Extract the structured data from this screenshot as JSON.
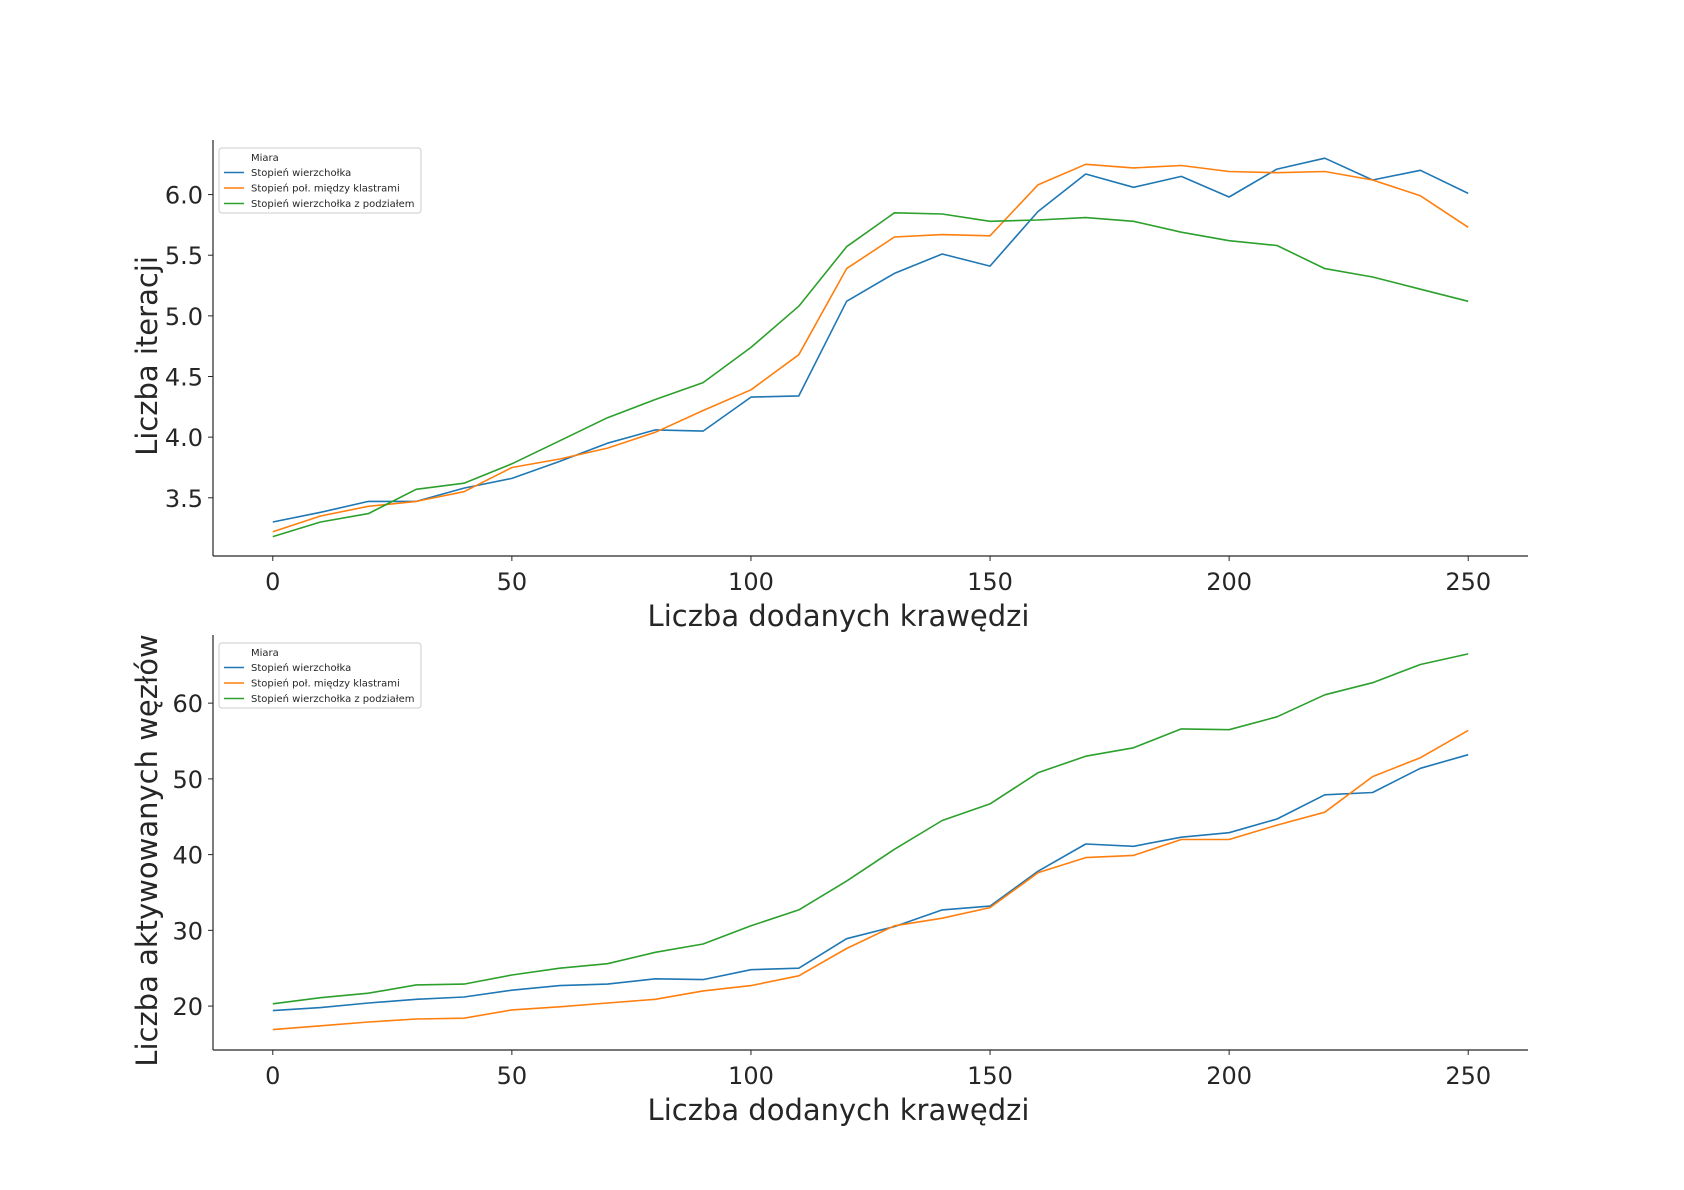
{
  "chart_data": [
    {
      "type": "line",
      "xlabel": "Liczba dodanych krawędzi",
      "ylabel": "Liczba iteracji",
      "xlim": [
        -12.5,
        262.5
      ],
      "ylim": [
        3.02,
        6.45
      ],
      "xticks": [
        0,
        50,
        100,
        150,
        200,
        250
      ],
      "xtick_labels": [
        "0",
        "50",
        "100",
        "150",
        "200",
        "250"
      ],
      "yticks": [
        3.5,
        4.0,
        4.5,
        5.0,
        5.5,
        6.0
      ],
      "ytick_labels": [
        "3.5",
        "4.0",
        "4.5",
        "5.0",
        "5.5",
        "6.0"
      ],
      "grid": false,
      "legend": {
        "title": "Miara",
        "placement": "upper-left",
        "entries": [
          "Stopień wierzchołka",
          "Stopień poł. między klastrami",
          "Stopień wierzchołka z podziałem"
        ]
      },
      "x": [
        0,
        10,
        20,
        30,
        40,
        50,
        60,
        70,
        80,
        90,
        100,
        110,
        120,
        130,
        140,
        150,
        160,
        170,
        180,
        190,
        200,
        210,
        220,
        230,
        240,
        250
      ],
      "series": [
        {
          "name": "Stopień wierzchołka",
          "color": "#1f77b4",
          "values": [
            3.3,
            3.38,
            3.47,
            3.47,
            3.58,
            3.66,
            3.8,
            3.95,
            4.06,
            4.05,
            4.33,
            4.34,
            5.12,
            5.35,
            5.51,
            5.41,
            5.86,
            6.17,
            6.06,
            6.15,
            5.98,
            6.21,
            6.3,
            6.12,
            6.2,
            6.01
          ]
        },
        {
          "name": "Stopień poł. między klastrami",
          "color": "#ff7f0e",
          "values": [
            3.22,
            3.35,
            3.43,
            3.47,
            3.55,
            3.75,
            3.82,
            3.91,
            4.04,
            4.22,
            4.39,
            4.68,
            5.39,
            5.65,
            5.67,
            5.66,
            6.08,
            6.25,
            6.22,
            6.24,
            6.19,
            6.18,
            6.19,
            6.12,
            5.99,
            5.73
          ]
        },
        {
          "name": "Stopień wierzchołka z podziałem",
          "color": "#2ca02c",
          "values": [
            3.18,
            3.3,
            3.37,
            3.57,
            3.62,
            3.78,
            3.97,
            4.16,
            4.31,
            4.45,
            4.74,
            5.08,
            5.57,
            5.85,
            5.84,
            5.78,
            5.79,
            5.81,
            5.78,
            5.69,
            5.62,
            5.58,
            5.39,
            5.32,
            5.22,
            5.12
          ]
        }
      ]
    },
    {
      "type": "line",
      "xlabel": "Liczba dodanych krawędzi",
      "ylabel": "Liczba aktywowanych węzłów",
      "xlim": [
        -12.5,
        262.5
      ],
      "ylim": [
        14.2,
        69.0
      ],
      "xticks": [
        0,
        50,
        100,
        150,
        200,
        250
      ],
      "xtick_labels": [
        "0",
        "50",
        "100",
        "150",
        "200",
        "250"
      ],
      "yticks": [
        20,
        30,
        40,
        50,
        60
      ],
      "ytick_labels": [
        "20",
        "30",
        "40",
        "50",
        "60"
      ],
      "grid": false,
      "legend": {
        "title": "Miara",
        "placement": "upper-left",
        "entries": [
          "Stopień wierzchołka",
          "Stopień poł. między klastrami",
          "Stopień wierzchołka z podziałem"
        ]
      },
      "x": [
        0,
        10,
        20,
        30,
        40,
        50,
        60,
        70,
        80,
        90,
        100,
        110,
        120,
        130,
        140,
        150,
        160,
        170,
        180,
        190,
        200,
        210,
        220,
        230,
        240,
        250
      ],
      "series": [
        {
          "name": "Stopień wierzchołka",
          "color": "#1f77b4",
          "values": [
            19.4,
            19.8,
            20.4,
            20.9,
            21.2,
            22.1,
            22.7,
            22.9,
            23.6,
            23.5,
            24.8,
            25.0,
            28.9,
            30.5,
            32.7,
            33.2,
            37.8,
            41.4,
            41.1,
            42.3,
            42.9,
            44.7,
            47.9,
            48.2,
            51.4,
            53.2
          ]
        },
        {
          "name": "Stopień poł. między klastrami",
          "color": "#ff7f0e",
          "values": [
            16.9,
            17.4,
            17.9,
            18.3,
            18.4,
            19.5,
            19.9,
            20.4,
            20.9,
            22.0,
            22.7,
            24.0,
            27.6,
            30.6,
            31.6,
            33.0,
            37.6,
            39.6,
            39.9,
            42.0,
            42.0,
            43.9,
            45.6,
            50.3,
            52.8,
            56.4
          ]
        },
        {
          "name": "Stopień wierzchołka z podziałem",
          "color": "#2ca02c",
          "values": [
            20.3,
            21.1,
            21.7,
            22.8,
            22.9,
            24.1,
            25.0,
            25.6,
            27.1,
            28.2,
            30.6,
            32.7,
            36.5,
            40.7,
            44.5,
            46.7,
            50.8,
            53.0,
            54.1,
            56.6,
            56.5,
            58.2,
            61.1,
            62.7,
            65.1,
            66.5
          ]
        }
      ]
    }
  ]
}
